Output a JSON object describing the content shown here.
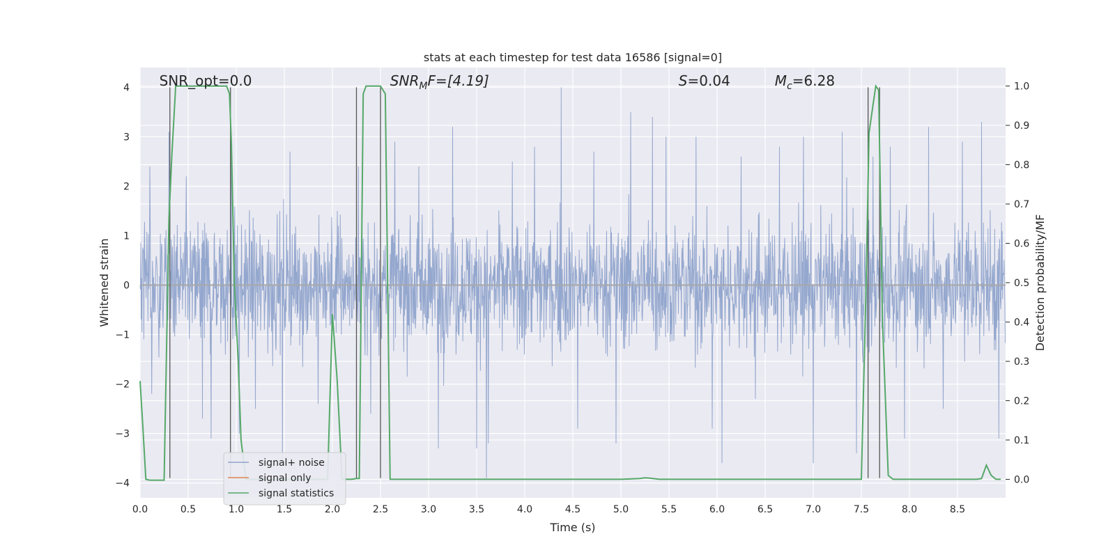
{
  "chart_data": {
    "type": "line",
    "title": "stats at each timestep for test data 16586 [signal=0]",
    "xlabel": "Time (s)",
    "ylabel_left": "Whitened strain",
    "ylabel_right": "Detection probability/MF",
    "xlim": [
      0.0,
      9.0
    ],
    "ylim_left": [
      -4.3,
      4.4
    ],
    "ylim_right": [
      -0.047,
      1.047
    ],
    "x_ticks": [
      "0.0",
      "0.5",
      "1.0",
      "1.5",
      "2.0",
      "2.5",
      "3.0",
      "3.5",
      "4.0",
      "4.5",
      "5.0",
      "5.5",
      "6.0",
      "6.5",
      "7.0",
      "7.5",
      "8.0",
      "8.5"
    ],
    "y_ticks_left": [
      "−4",
      "−3",
      "−2",
      "−1",
      "0",
      "1",
      "2",
      "3",
      "4"
    ],
    "y_ticks_right": [
      "0.0",
      "0.1",
      "0.2",
      "0.3",
      "0.4",
      "0.5",
      "0.6",
      "0.7",
      "0.8",
      "0.9",
      "1.0"
    ],
    "grid": true,
    "legend_position": "lower-left",
    "annotations": [
      {
        "id": "snr-opt",
        "text": "SNR_opt=0.0",
        "x": 0.2
      },
      {
        "id": "snr-mf",
        "text": "SNR",
        "sub": "M",
        "rest": "F=[4.19]",
        "x": 2.6
      },
      {
        "id": "s-val",
        "text": "S",
        "rest": "=0.04",
        "x": 5.6
      },
      {
        "id": "mc-val",
        "text": "M",
        "sub": "c",
        "rest": "=6.28",
        "x": 6.6
      }
    ],
    "series": [
      {
        "name": "signal+ noise",
        "color": "#8fa3cb",
        "sample_rate_hz": 256,
        "description_envelope": {
          "typical_abs": 2.2,
          "peaks": [
            [
              0.1,
              2.4
            ],
            [
              0.12,
              -2.2
            ],
            [
              0.3,
              3.1
            ],
            [
              0.48,
              2.2
            ],
            [
              0.65,
              -2.7
            ],
            [
              0.74,
              -3.1
            ],
            [
              0.95,
              2.5
            ],
            [
              1.03,
              -3.0
            ],
            [
              1.2,
              -2.5
            ],
            [
              1.48,
              -3.6
            ],
            [
              1.56,
              2.7
            ],
            [
              1.85,
              -2.4
            ],
            [
              2.05,
              1.5
            ],
            [
              2.27,
              2.4
            ],
            [
              2.4,
              -2.6
            ],
            [
              2.65,
              2.9
            ],
            [
              2.9,
              2.4
            ],
            [
              3.1,
              -3.3
            ],
            [
              3.25,
              3.2
            ],
            [
              3.5,
              -3.3
            ],
            [
              3.6,
              -3.9
            ],
            [
              3.62,
              -3.2
            ],
            [
              3.87,
              2.5
            ],
            [
              4.1,
              2.8
            ],
            [
              4.38,
              4.0
            ],
            [
              4.55,
              -2.9
            ],
            [
              4.72,
              2.7
            ],
            [
              4.95,
              -3.2
            ],
            [
              5.1,
              3.5
            ],
            [
              5.33,
              3.4
            ],
            [
              5.47,
              3.0
            ],
            [
              5.78,
              3.0
            ],
            [
              5.95,
              -2.9
            ],
            [
              6.05,
              -3.6
            ],
            [
              6.25,
              2.6
            ],
            [
              6.4,
              -2.3
            ],
            [
              6.65,
              2.8
            ],
            [
              6.9,
              3.0
            ],
            [
              7.0,
              -3.6
            ],
            [
              7.3,
              3.1
            ],
            [
              7.45,
              -3.4
            ],
            [
              7.62,
              2.6
            ],
            [
              7.8,
              2.8
            ],
            [
              7.95,
              -3.1
            ],
            [
              8.2,
              3.2
            ],
            [
              8.35,
              -2.5
            ],
            [
              8.55,
              2.9
            ],
            [
              8.75,
              3.3
            ],
            [
              8.93,
              -3.1
            ]
          ]
        }
      },
      {
        "name": "signal only",
        "color": "#dd8452",
        "values_y": [
          0.0,
          0.0
        ]
      },
      {
        "name": "signal statistics",
        "color": "#55a868",
        "x": [
          0.0,
          0.03,
          0.06,
          0.1,
          0.15,
          0.2,
          0.25,
          0.3,
          0.33,
          0.37,
          0.42,
          0.5,
          0.6,
          0.7,
          0.8,
          0.85,
          0.9,
          0.93,
          0.95,
          0.98,
          1.02,
          1.05,
          1.1,
          1.3,
          1.5,
          1.7,
          1.85,
          1.9,
          1.95,
          2.0,
          2.05,
          2.1,
          2.15,
          2.2,
          2.25,
          2.28,
          2.32,
          2.35,
          2.4,
          2.45,
          2.5,
          2.55,
          2.6,
          2.7,
          3.0,
          4.0,
          5.0,
          5.2,
          5.25,
          5.3,
          5.4,
          6.0,
          7.0,
          7.5,
          7.55,
          7.58,
          7.62,
          7.65,
          7.68,
          7.72,
          7.78,
          7.83,
          7.9,
          8.0,
          8.5,
          8.7,
          8.75,
          8.8,
          8.85,
          8.9,
          8.95
        ],
        "y": [
          0.25,
          0.13,
          0.0,
          -0.002,
          -0.002,
          -0.002,
          -0.002,
          0.66,
          0.82,
          1.0,
          1.0,
          1.0,
          1.0,
          1.0,
          1.0,
          1.0,
          1.0,
          0.98,
          0.85,
          0.5,
          0.3,
          0.1,
          0.0,
          0.0,
          0.0,
          0.0,
          0.0,
          0.0,
          0.0,
          0.42,
          0.25,
          0.0,
          0.0,
          0.0,
          0.002,
          0.002,
          0.98,
          1.0,
          1.0,
          1.0,
          1.0,
          0.98,
          0.0,
          0.0,
          0.0,
          0.0,
          0.0,
          0.002,
          0.004,
          0.003,
          0.0,
          0.0,
          0.0,
          0.0,
          0.5,
          0.88,
          0.95,
          1.0,
          0.99,
          0.4,
          0.01,
          0.0,
          0.0,
          0.0,
          0.0,
          0.0,
          0.002,
          0.036,
          0.01,
          0.0,
          0.0
        ]
      }
    ],
    "vertical_markers_x": [
      0.31,
      0.94,
      2.25,
      2.5,
      7.57,
      7.69
    ]
  }
}
